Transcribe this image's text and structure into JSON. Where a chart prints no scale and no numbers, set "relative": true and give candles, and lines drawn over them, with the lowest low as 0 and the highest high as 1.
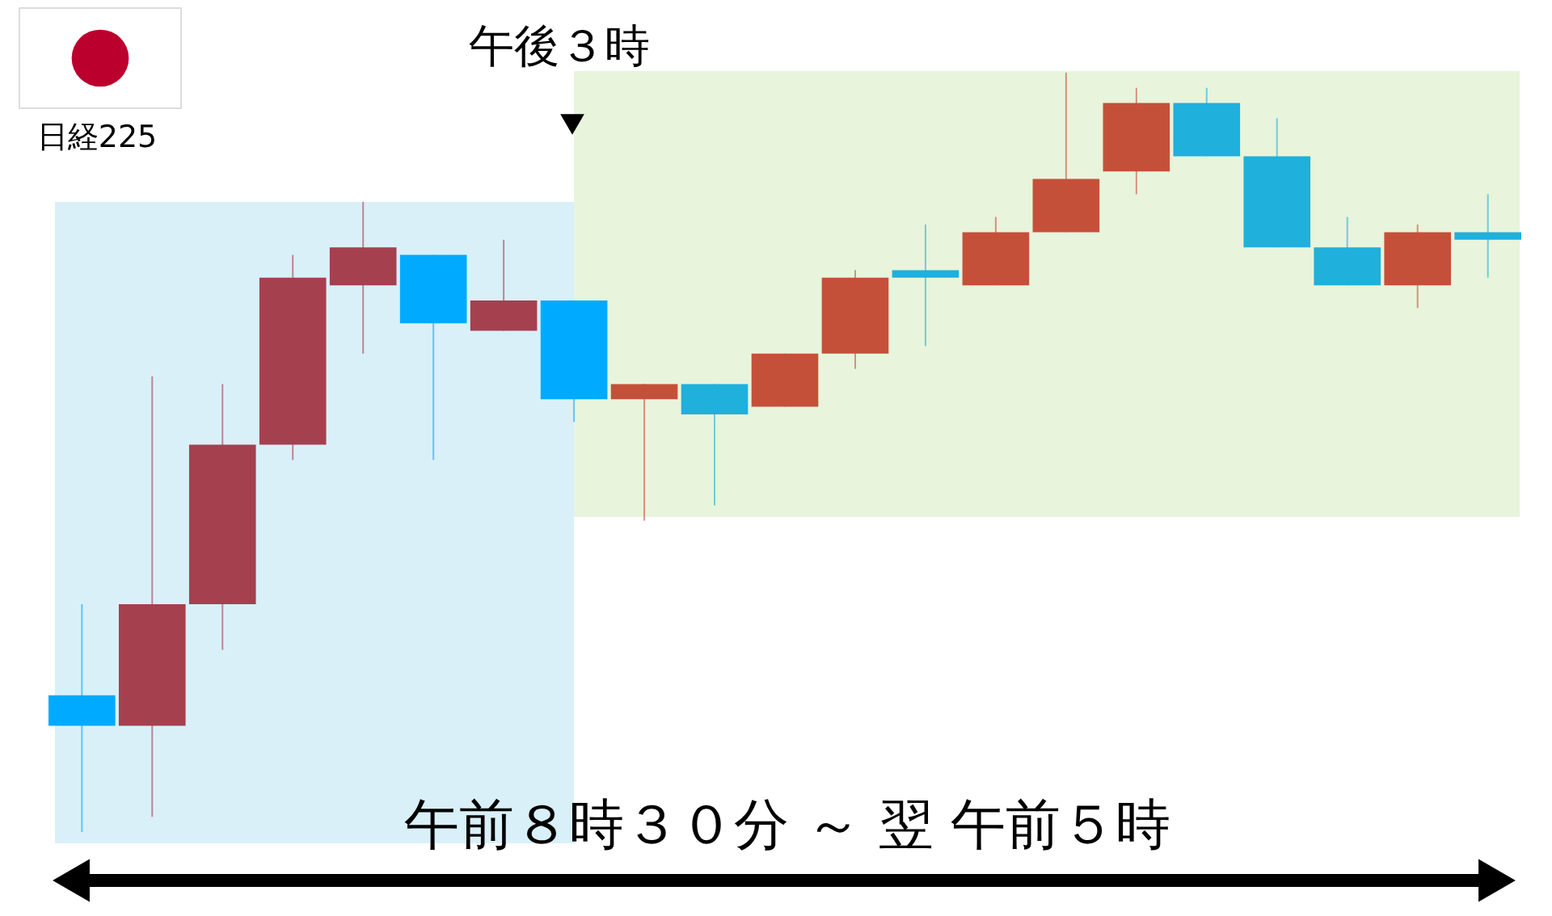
{
  "chart_data": {
    "type": "candlestick",
    "title": "日経225",
    "xlabel": "午前８時３０分 ～ 翌 午前５時",
    "relative": true,
    "tick_labels": false,
    "categories": [
      null,
      null,
      null,
      null,
      null,
      null,
      null,
      null,
      null,
      null,
      null,
      null,
      null,
      null,
      null,
      null,
      null,
      null,
      null,
      null,
      null
    ],
    "ohlc": [
      [
        0.18,
        0.3,
        0.0,
        0.14
      ],
      [
        0.14,
        0.6,
        0.02,
        0.3
      ],
      [
        0.3,
        0.59,
        0.24,
        0.51
      ],
      [
        0.51,
        0.76,
        0.49,
        0.73
      ],
      [
        0.72,
        0.83,
        0.63,
        0.77
      ],
      [
        0.76,
        0.76,
        0.49,
        0.67
      ],
      [
        0.66,
        0.78,
        0.66,
        0.7
      ],
      [
        0.7,
        0.7,
        0.54,
        0.57
      ],
      [
        0.57,
        0.59,
        0.41,
        0.59
      ],
      [
        0.59,
        0.59,
        0.43,
        0.55
      ],
      [
        0.56,
        0.63,
        0.56,
        0.63
      ],
      [
        0.63,
        0.74,
        0.61,
        0.73
      ],
      [
        0.74,
        0.8,
        0.64,
        0.73
      ],
      [
        0.72,
        0.81,
        0.72,
        0.79
      ],
      [
        0.79,
        1.0,
        0.79,
        0.86
      ],
      [
        0.87,
        0.98,
        0.84,
        0.96
      ],
      [
        0.96,
        0.98,
        0.89,
        0.89
      ],
      [
        0.89,
        0.94,
        0.77,
        0.77
      ],
      [
        0.77,
        0.81,
        0.72,
        0.72
      ],
      [
        0.72,
        0.8,
        0.69,
        0.79
      ],
      [
        0.79,
        0.84,
        0.73,
        0.78
      ]
    ],
    "colors": [
      "#00aaff",
      "#a5404f",
      "#a5404f",
      "#a5404f",
      "#a5404f",
      "#00aaff",
      "#a5404f",
      "#00aaff",
      "#c5503a",
      "#1fb0dc",
      "#c5503a",
      "#c5503a",
      "#1fb0dc",
      "#c5503a",
      "#c5503a",
      "#c5503a",
      "#1fb0dc",
      "#1fb0dc",
      "#1fb0dc",
      "#c5503a",
      "#1fb0dc"
    ],
    "annotations": [
      "午後３時"
    ]
  }
}
